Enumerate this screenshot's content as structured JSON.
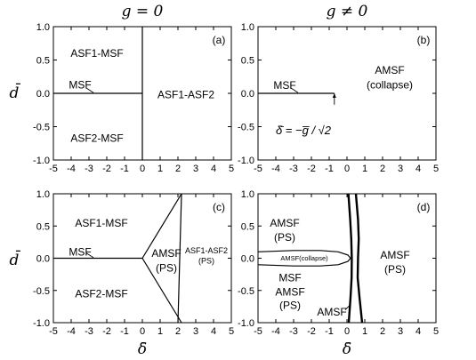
{
  "figure": {
    "col_titles": [
      "g = 0",
      "g ≠ 0"
    ],
    "xlabel": "δ̄",
    "ylabel": "d̄"
  },
  "chart_data": [
    {
      "type": "line",
      "panel_label": "(a)",
      "xlim": [
        -5,
        5
      ],
      "ylim": [
        -1,
        1
      ],
      "xticks": [
        -5,
        -4,
        -3,
        -2,
        -1,
        0,
        1,
        2,
        3,
        4,
        5
      ],
      "yticks": [
        1.0,
        0.5,
        0.0,
        -0.5,
        -1.0
      ],
      "ytick_labels": [
        "1.0",
        "0.5",
        "0.0",
        "-0.5",
        "-1.0"
      ],
      "lines": [
        {
          "x": [
            -5,
            0
          ],
          "y": [
            0,
            0
          ]
        },
        {
          "x": [
            0,
            0
          ],
          "y": [
            -1,
            1
          ]
        }
      ],
      "annotations": [
        {
          "text": "ASF1-MSF",
          "x": -2.55,
          "y": 0.6
        },
        {
          "text": "MSF",
          "x": -3.5,
          "y": 0.13
        },
        {
          "text": "ASF1-ASF2",
          "x": 2.45,
          "y": -0.02
        },
        {
          "text": "ASF2-MSF",
          "x": -2.55,
          "y": -0.67
        }
      ]
    },
    {
      "type": "line",
      "panel_label": "(b)",
      "xlim": [
        -5,
        5
      ],
      "ylim": [
        -1,
        1
      ],
      "xticks": [
        -5,
        -4,
        -3,
        -2,
        -1,
        0,
        1,
        2,
        3,
        4,
        5
      ],
      "yticks": [
        1.0,
        0.5,
        0.0,
        -0.5,
        -1.0
      ],
      "ytick_labels": [
        "1.0",
        "0.5",
        "0.0",
        "-0.5",
        "-1.0"
      ],
      "lines": [
        {
          "x": [
            -5,
            -0.71
          ],
          "y": [
            0,
            0
          ]
        }
      ],
      "annotations": [
        {
          "text": "MSF",
          "x": -3.5,
          "y": 0.12
        },
        {
          "text": "AMSF",
          "x": 2.4,
          "y": 0.35
        },
        {
          "text": "(collapse)",
          "x": 2.4,
          "y": 0.13
        },
        {
          "text": "δ̄ = −g̅ / √2",
          "x": -2.45,
          "y": -0.55
        }
      ]
    },
    {
      "type": "line",
      "panel_label": "(c)",
      "xlim": [
        -5,
        5
      ],
      "ylim": [
        -1,
        1
      ],
      "xticks": [
        -5,
        -4,
        -3,
        -2,
        -1,
        0,
        1,
        2,
        3,
        4,
        5
      ],
      "yticks": [
        1.0,
        0.5,
        0.0,
        -0.5,
        -1.0
      ],
      "ytick_labels": [
        "1.0",
        "0.5",
        "0.0",
        "-0.5",
        "-1.0"
      ],
      "lines": [
        {
          "x": [
            -5,
            0
          ],
          "y": [
            0,
            0
          ]
        },
        {
          "x": [
            0,
            2.2
          ],
          "y": [
            0,
            1
          ]
        },
        {
          "x": [
            0,
            2.2
          ],
          "y": [
            0,
            -1
          ]
        },
        {
          "x": [
            2.2,
            2.0
          ],
          "y": [
            1,
            -1
          ]
        }
      ],
      "annotations": [
        {
          "text": "ASF1-MSF",
          "x": -2.3,
          "y": 0.55
        },
        {
          "text": "MSF",
          "x": -3.5,
          "y": 0.1
        },
        {
          "text": "AMSF",
          "x": 1.35,
          "y": 0.08
        },
        {
          "text": "(PS)",
          "x": 1.35,
          "y": -0.15
        },
        {
          "text": "ASF1-ASF2",
          "x": 3.6,
          "y": 0.12
        },
        {
          "text": "(PS)",
          "x": 3.6,
          "y": -0.04
        },
        {
          "text": "ASF2-MSF",
          "x": -2.3,
          "y": -0.55
        }
      ]
    },
    {
      "type": "line",
      "panel_label": "(d)",
      "xlim": [
        -5,
        5
      ],
      "ylim": [
        -1,
        1
      ],
      "xticks": [
        -5,
        -4,
        -3,
        -2,
        -1,
        0,
        1,
        2,
        3,
        4,
        5
      ],
      "yticks": [
        1.0,
        0.5,
        0.0,
        -0.5,
        -1.0
      ],
      "ytick_labels": [
        "1.0",
        "0.5",
        "0.0",
        "-0.5",
        "-1.0"
      ],
      "lines": [
        {
          "x": [
            -5,
            -3,
            -1.5,
            -0.5,
            0.05,
            0.2,
            0.05,
            -0.5,
            -1.5,
            -3,
            -5
          ],
          "y": [
            0.1,
            0.12,
            0.12,
            0.1,
            0.05,
            0,
            -0.05,
            -0.1,
            -0.12,
            -0.12,
            -0.1
          ],
          "style": "thin"
        },
        {
          "x": [
            0.08,
            0.18,
            0.24,
            0.27,
            0.26,
            0.2,
            0.1
          ],
          "y": [
            1,
            0.6,
            0.3,
            0,
            -0.3,
            -0.6,
            -1
          ],
          "style": "thick"
        },
        {
          "x": [
            0.5,
            0.62,
            0.66,
            0.62,
            0.6,
            0.7,
            0.85
          ],
          "y": [
            1,
            0.6,
            0.3,
            0,
            -0.3,
            -0.6,
            -1
          ],
          "style": "thick"
        }
      ],
      "annotations": [
        {
          "text": "AMSF",
          "x": -3.5,
          "y": 0.55
        },
        {
          "text": "(PS)",
          "x": -3.5,
          "y": 0.33
        },
        {
          "text": "AMSF(collapse)",
          "x": -2.4,
          "y": 0.0
        },
        {
          "text": "MSF",
          "x": -3.2,
          "y": -0.3
        },
        {
          "text": "AMSF",
          "x": -3.2,
          "y": -0.52
        },
        {
          "text": "(PS)",
          "x": -3.2,
          "y": -0.73
        },
        {
          "text": "AMSF",
          "x": -0.85,
          "y": -0.83
        },
        {
          "text": "AMSF",
          "x": 2.7,
          "y": 0.05
        },
        {
          "text": "(PS)",
          "x": 2.7,
          "y": -0.17
        }
      ]
    }
  ]
}
